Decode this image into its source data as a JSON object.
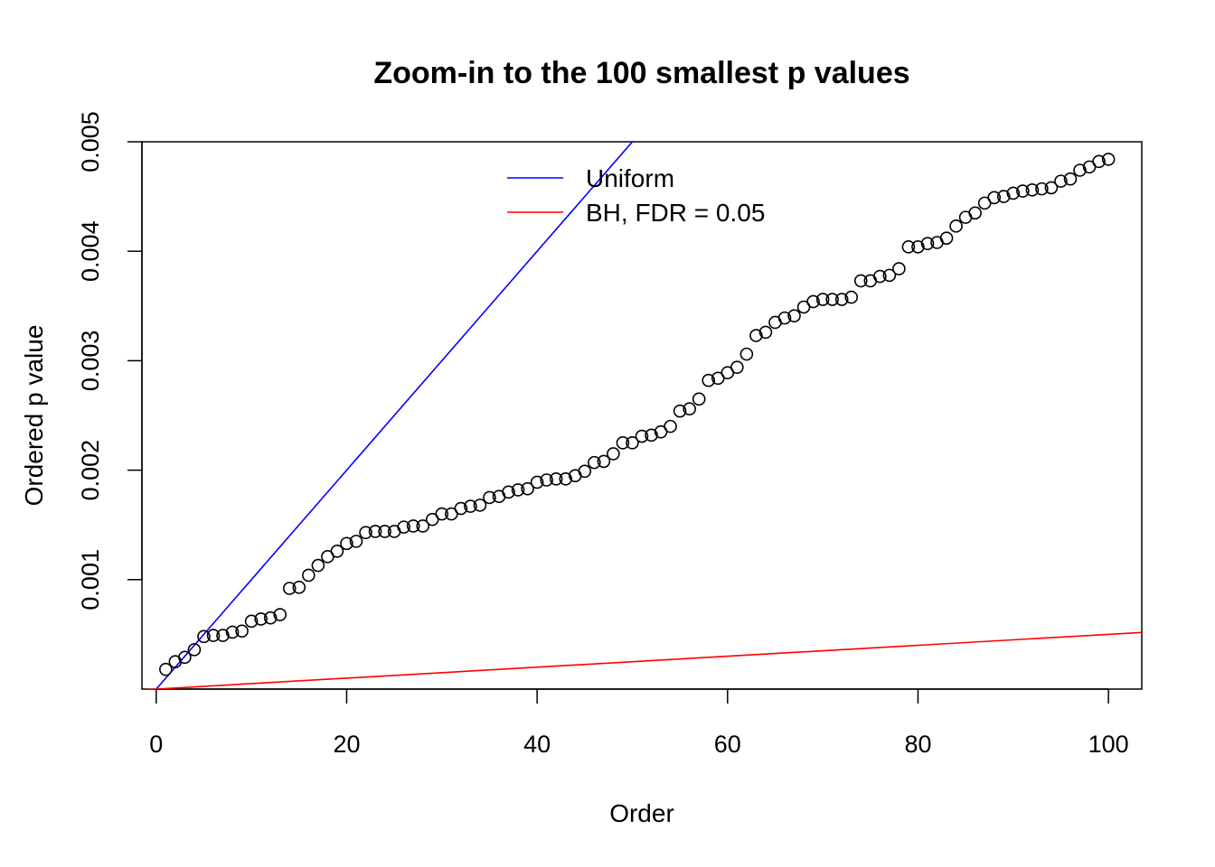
{
  "chart_data": {
    "type": "scatter",
    "title": "Zoom-in to the 100 smallest p values",
    "xlabel": "Order",
    "ylabel": "Ordered p value",
    "xlim": [
      -1.5,
      103.5
    ],
    "ylim": [
      0,
      0.005
    ],
    "x_ticks": [
      0,
      20,
      40,
      60,
      80,
      100
    ],
    "x_tick_labels": [
      "0",
      "20",
      "40",
      "60",
      "80",
      "100"
    ],
    "y_ticks": [
      0.001,
      0.002,
      0.003,
      0.004,
      0.005
    ],
    "y_tick_labels": [
      "0.001",
      "0.002",
      "0.003",
      "0.004",
      "0.005"
    ],
    "grid": false,
    "legend_position": "top-center",
    "legend": [
      {
        "label": "Uniform",
        "color": "#0000ff"
      },
      {
        "label": "BH, FDR = 0.05",
        "color": "#ff0000"
      }
    ],
    "lines": [
      {
        "name": "Uniform",
        "color": "#0000ff",
        "slope": 0.0001,
        "intercept": 0
      },
      {
        "name": "BH, FDR = 0.05",
        "color": "#ff0000",
        "slope": 5e-06,
        "intercept": 0
      }
    ],
    "series": [
      {
        "name": "Ordered p values",
        "marker": "open-circle",
        "color": "#000000",
        "x": [
          1,
          2,
          3,
          4,
          5,
          6,
          7,
          8,
          9,
          10,
          11,
          12,
          13,
          14,
          15,
          16,
          17,
          18,
          19,
          20,
          21,
          22,
          23,
          24,
          25,
          26,
          27,
          28,
          29,
          30,
          31,
          32,
          33,
          34,
          35,
          36,
          37,
          38,
          39,
          40,
          41,
          42,
          43,
          44,
          45,
          46,
          47,
          48,
          49,
          50,
          51,
          52,
          53,
          54,
          55,
          56,
          57,
          58,
          59,
          60,
          61,
          62,
          63,
          64,
          65,
          66,
          67,
          68,
          69,
          70,
          71,
          72,
          73,
          74,
          75,
          76,
          77,
          78,
          79,
          80,
          81,
          82,
          83,
          84,
          85,
          86,
          87,
          88,
          89,
          90,
          91,
          92,
          93,
          94,
          95,
          96,
          97,
          98,
          99,
          100
        ],
        "values": [
          0.00018,
          0.00025,
          0.00029,
          0.00036,
          0.00048,
          0.00049,
          0.00049,
          0.00052,
          0.00053,
          0.00062,
          0.00064,
          0.00065,
          0.00068,
          0.00092,
          0.00093,
          0.00104,
          0.00113,
          0.00121,
          0.00126,
          0.00133,
          0.00135,
          0.00143,
          0.00144,
          0.00144,
          0.00144,
          0.00148,
          0.00149,
          0.00149,
          0.00155,
          0.0016,
          0.0016,
          0.00165,
          0.00167,
          0.00168,
          0.00175,
          0.00176,
          0.0018,
          0.00182,
          0.00183,
          0.00189,
          0.00191,
          0.00192,
          0.00192,
          0.00195,
          0.00199,
          0.00207,
          0.00208,
          0.00215,
          0.00225,
          0.00225,
          0.00231,
          0.00232,
          0.00235,
          0.0024,
          0.00254,
          0.00256,
          0.00265,
          0.00282,
          0.00284,
          0.00289,
          0.00294,
          0.00306,
          0.00323,
          0.00326,
          0.00335,
          0.00339,
          0.00341,
          0.00349,
          0.00354,
          0.00356,
          0.00356,
          0.00356,
          0.00358,
          0.00373,
          0.00373,
          0.00377,
          0.00378,
          0.00384,
          0.00404,
          0.00404,
          0.00407,
          0.00408,
          0.00412,
          0.00423,
          0.00431,
          0.00435,
          0.00444,
          0.00449,
          0.0045,
          0.00453,
          0.00455,
          0.00456,
          0.00457,
          0.00458,
          0.00464,
          0.00466,
          0.00474,
          0.00477,
          0.00482,
          0.00484
        ]
      }
    ]
  }
}
